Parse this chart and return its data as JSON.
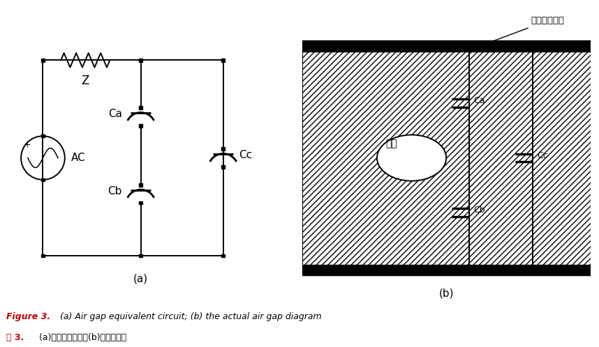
{
  "fig_width": 8.58,
  "fig_height": 4.98,
  "bg_color": "#ffffff",
  "line_color": "#000000",
  "caption_bold_en": "Figure 3.",
  "caption_rest_en": " (a) Air gap equivalent circuit; (b) the actual air gap diagram",
  "caption_bold_zh": "图 3.",
  "caption_rest_zh": " (a)气隙等效电路；(b)实际气隙图",
  "label_a": "(a)",
  "label_b": "(b)",
  "label_Z": "Z",
  "label_AC": "AC",
  "label_Ca_left": "Ca",
  "label_Cb_left": "Cb",
  "label_Cc_left": "Cc",
  "label_Ca_right": "Ca",
  "label_Cb_right": "Cb",
  "label_Cc_right": "Cc",
  "label_qx": "气隙",
  "label_annotation": "气隙等效电路",
  "caption_color": "#c00000"
}
